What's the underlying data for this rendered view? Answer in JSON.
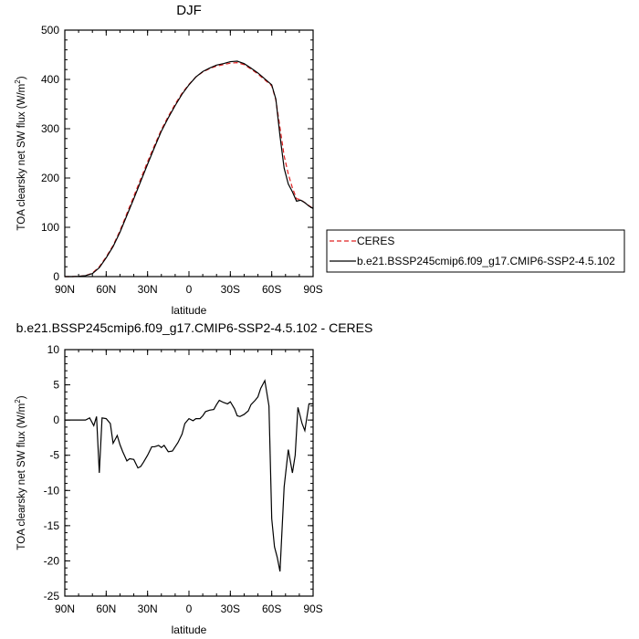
{
  "chart_data": [
    {
      "type": "line",
      "title": "DJF",
      "xlabel": "latitude",
      "ylabel": "TOA clearsky net SW flux (W/m",
      "ylabel_sup": "2",
      "ylabel_end": ")",
      "xlim": [
        90,
        -90
      ],
      "ylim": [
        0,
        500
      ],
      "x_ticks": [
        90,
        60,
        30,
        0,
        -30,
        -60,
        -90
      ],
      "x_tick_labels": [
        "90N",
        "60N",
        "30N",
        "0",
        "30S",
        "60S",
        "90S"
      ],
      "y_ticks": [
        0,
        100,
        200,
        300,
        400,
        500
      ],
      "y_tick_labels": [
        "0",
        "100",
        "200",
        "300",
        "400",
        "500"
      ],
      "legend_position": "right",
      "series": [
        {
          "name": "CERES",
          "color": "#e02020",
          "dash": "dashed",
          "x": [
            90,
            85,
            80,
            75,
            70,
            65,
            60,
            55,
            50,
            45,
            40,
            35,
            30,
            25,
            20,
            15,
            10,
            5,
            0,
            -5,
            -10,
            -15,
            -20,
            -25,
            -30,
            -35,
            -40,
            -45,
            -50,
            -55,
            -60,
            -63,
            -66,
            -69,
            -72,
            -75,
            -78,
            -81,
            -84,
            -87,
            -90
          ],
          "y": [
            0,
            0,
            0.5,
            2,
            7,
            20,
            40,
            63,
            93,
            128,
            163,
            198,
            233,
            266,
            298,
            325,
            350,
            372,
            390,
            405,
            415,
            422,
            427,
            430,
            433,
            434,
            430,
            421,
            411,
            399,
            387,
            358,
            302,
            245,
            208,
            180,
            158,
            156,
            150,
            144,
            138
          ]
        },
        {
          "name": "b.e21.BSSP245cmip6.f09_g17.CMIP6-SSP2-4.5.102",
          "color": "#000000",
          "dash": "solid",
          "x": [
            90,
            85,
            80,
            75,
            70,
            65,
            60,
            55,
            50,
            45,
            40,
            35,
            30,
            25,
            20,
            15,
            10,
            5,
            0,
            -5,
            -10,
            -15,
            -20,
            -25,
            -30,
            -35,
            -40,
            -45,
            -50,
            -55,
            -60,
            -63,
            -66,
            -69,
            -72,
            -75,
            -78,
            -81,
            -84,
            -87,
            -90
          ],
          "y": [
            0,
            0,
            0.5,
            2,
            6,
            18,
            38,
            61,
            90,
            124,
            158,
            193,
            228,
            262,
            295,
            322,
            347,
            370,
            389,
            405,
            416,
            423,
            429,
            432,
            436,
            437,
            432,
            423,
            413,
            401,
            389,
            360,
            285,
            220,
            188,
            172,
            153,
            155,
            150,
            143,
            138
          ]
        }
      ]
    },
    {
      "type": "line",
      "title": "b.e21.BSSP245cmip6.f09_g17.CMIP6-SSP2-4.5.102 - CERES",
      "xlabel": "latitude",
      "ylabel": "TOA clearsky net SW flux (W/m",
      "ylabel_sup": "2",
      "ylabel_end": ")",
      "xlim": [
        90,
        -90
      ],
      "ylim": [
        -25,
        10
      ],
      "x_ticks": [
        90,
        60,
        30,
        0,
        -30,
        -60,
        -90
      ],
      "x_tick_labels": [
        "90N",
        "60N",
        "30N",
        "0",
        "30S",
        "60S",
        "90S"
      ],
      "y_ticks": [
        -25,
        -20,
        -15,
        -10,
        -5,
        0,
        5,
        10
      ],
      "y_tick_labels": [
        "-25",
        "-20",
        "-15",
        "-10",
        "-5",
        "0",
        "5",
        "10"
      ],
      "series": [
        {
          "color": "#000000",
          "dash": "solid",
          "x": [
            90,
            85,
            80,
            75,
            72,
            69,
            67,
            65,
            63,
            60,
            57,
            55,
            52,
            50,
            48,
            45,
            43,
            40,
            37,
            35,
            33,
            30,
            27,
            25,
            22,
            20,
            18,
            15,
            12,
            10,
            8,
            5,
            3,
            0,
            -3,
            -5,
            -8,
            -10,
            -12,
            -15,
            -18,
            -20,
            -22,
            -25,
            -28,
            -30,
            -33,
            -35,
            -37,
            -40,
            -43,
            -45,
            -48,
            -50,
            -52,
            -55,
            -58,
            -60,
            -62,
            -64,
            -66,
            -69,
            -72,
            -75,
            -77,
            -79,
            -82,
            -84,
            -87,
            -90
          ],
          "y": [
            0,
            0,
            0,
            0,
            0.3,
            -0.8,
            0.5,
            -7.5,
            0.3,
            0.2,
            -0.5,
            -3.3,
            -2.2,
            -3.5,
            -4.5,
            -5.8,
            -5.5,
            -5.6,
            -6.8,
            -6.6,
            -6.0,
            -5.0,
            -3.8,
            -3.8,
            -3.6,
            -3.9,
            -3.6,
            -4.5,
            -4.4,
            -3.8,
            -3.2,
            -2.0,
            -0.5,
            0.2,
            -0.1,
            0.2,
            0.2,
            0.6,
            1.2,
            1.4,
            1.5,
            2.2,
            2.8,
            2.5,
            2.3,
            2.6,
            1.6,
            0.6,
            0.5,
            0.8,
            1.3,
            2.2,
            2.8,
            3.3,
            4.5,
            5.6,
            2.0,
            -14,
            -18,
            -19.5,
            -21.5,
            -9.5,
            -4.2,
            -7.5,
            -5,
            1.8,
            -0.5,
            -1.5,
            2.3,
            2.3
          ]
        }
      ]
    }
  ]
}
